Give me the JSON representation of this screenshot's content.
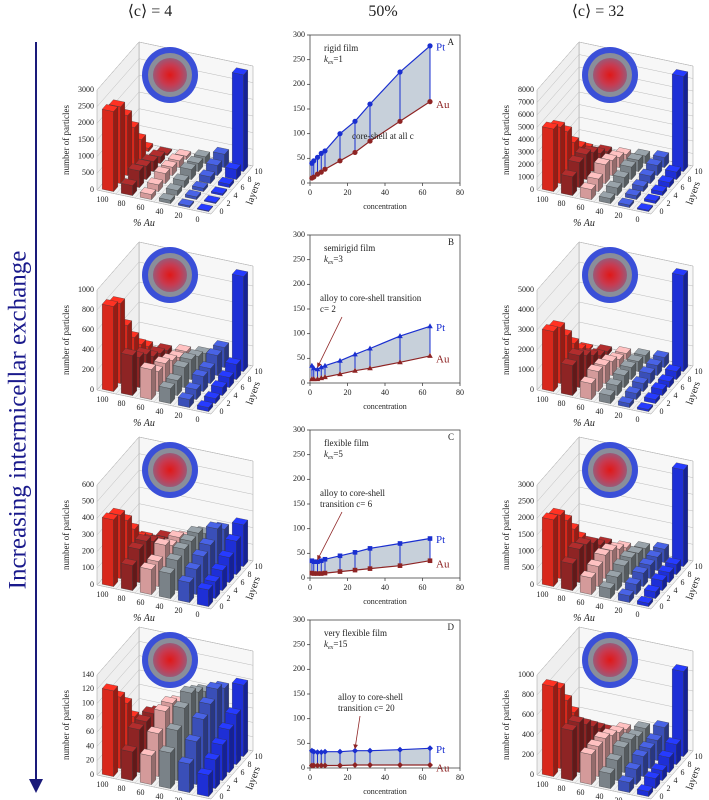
{
  "headers": [
    "⟨c⟩ = 4",
    "50%",
    "⟨c⟩ = 32"
  ],
  "side_label": "Increasing intermicellar exchange",
  "chart_data": [
    {
      "type": "bar3d",
      "ylabel": "number of particles",
      "xlabel": "% Au",
      "zlabel": "layers",
      "categories": [
        100,
        80,
        60,
        40,
        20,
        0
      ],
      "colors": [
        "#d8281c",
        "#8e2424",
        "#d49a9a",
        "#7a8288",
        "#3a4fb8",
        "#1e2fd6"
      ],
      "ylim": [
        0,
        3000
      ],
      "yticks": [
        0,
        500,
        1000,
        1500,
        2000,
        2500,
        3000
      ],
      "series": [
        {
          "name": "0",
          "values": [
            2400,
            300,
            150,
            100,
            50,
            20
          ]
        },
        {
          "name": "2",
          "values": [
            2300,
            500,
            200,
            150,
            80,
            30
          ]
        },
        {
          "name": "4",
          "values": [
            1800,
            400,
            300,
            200,
            100,
            50
          ]
        },
        {
          "name": "6",
          "values": [
            1200,
            300,
            250,
            300,
            200,
            100
          ]
        },
        {
          "name": "8",
          "values": [
            600,
            200,
            200,
            250,
            300,
            300
          ]
        },
        {
          "name": "10",
          "values": [
            100,
            50,
            100,
            200,
            400,
            2900
          ]
        }
      ]
    },
    {
      "type": "line",
      "panel": "A",
      "xlabel": "concentration",
      "notes": [
        "rigid film"
      ],
      "kex": [
        "k",
        "ex",
        "=1"
      ],
      "transition": [
        "core-shell at all c"
      ],
      "marker": "circle",
      "x": [
        1,
        2,
        4,
        6,
        8,
        16,
        24,
        32,
        48,
        64
      ],
      "xlim": [
        0,
        80
      ],
      "xticks": [
        0,
        20,
        40,
        60,
        80
      ],
      "ylim": [
        0,
        300
      ],
      "yticks": [
        0,
        50,
        100,
        150,
        200,
        250,
        300
      ],
      "series": [
        {
          "name": "Pt",
          "color": "#1a2fd0",
          "values": [
            40,
            45,
            52,
            60,
            65,
            100,
            125,
            160,
            225,
            278
          ]
        },
        {
          "name": "Au",
          "color": "#8e2424",
          "values": [
            10,
            12,
            18,
            22,
            28,
            45,
            62,
            85,
            125,
            165
          ]
        }
      ]
    },
    {
      "type": "bar3d",
      "ylabel": "number of particles",
      "xlabel": "% Au",
      "zlabel": "layers",
      "categories": [
        100,
        80,
        60,
        40,
        20,
        0
      ],
      "colors": [
        "#d8281c",
        "#8e2424",
        "#d49a9a",
        "#7a8288",
        "#3a4fb8",
        "#1e2fd6"
      ],
      "ylim": [
        0,
        8000
      ],
      "yticks": [
        0,
        1000,
        2000,
        3000,
        4000,
        5000,
        6000,
        7000,
        8000
      ],
      "series": [
        {
          "name": "0",
          "values": [
            5000,
            1500,
            800,
            400,
            200,
            100
          ]
        },
        {
          "name": "2",
          "values": [
            4500,
            2000,
            1000,
            600,
            300,
            200
          ]
        },
        {
          "name": "4",
          "values": [
            3500,
            2000,
            1500,
            800,
            400,
            300
          ]
        },
        {
          "name": "6",
          "values": [
            2000,
            1500,
            1200,
            1000,
            600,
            400
          ]
        },
        {
          "name": "8",
          "values": [
            1000,
            800,
            800,
            900,
            800,
            600
          ]
        },
        {
          "name": "10",
          "values": [
            200,
            300,
            400,
            600,
            800,
            7600
          ]
        }
      ]
    },
    {
      "type": "bar3d",
      "ylabel": "number of particles",
      "xlabel": "% Au",
      "zlabel": "layers",
      "categories": [
        100,
        80,
        60,
        40,
        20,
        0
      ],
      "colors": [
        "#d8281c",
        "#8e2424",
        "#d49a9a",
        "#7a8288",
        "#3a4fb8",
        "#1e2fd6"
      ],
      "ylim": [
        0,
        1000
      ],
      "yticks": [
        0,
        200,
        400,
        600,
        800,
        1000
      ],
      "series": [
        {
          "name": "0",
          "values": [
            850,
            400,
            300,
            150,
            80,
            40
          ]
        },
        {
          "name": "2",
          "values": [
            800,
            300,
            200,
            150,
            100,
            50
          ]
        },
        {
          "name": "4",
          "values": [
            500,
            250,
            200,
            200,
            150,
            80
          ]
        },
        {
          "name": "6",
          "values": [
            300,
            150,
            150,
            200,
            150,
            100
          ]
        },
        {
          "name": "8",
          "values": [
            150,
            100,
            100,
            150,
            200,
            150
          ]
        },
        {
          "name": "10",
          "values": [
            50,
            50,
            80,
            100,
            200,
            950
          ]
        }
      ]
    },
    {
      "type": "line",
      "panel": "B",
      "xlabel": "concentration",
      "notes": [
        "semirigid film"
      ],
      "kex": [
        "k",
        "ex",
        "=3"
      ],
      "transition": [
        "alloy to core-shell transition",
        "c= 2"
      ],
      "marker": "triangle",
      "x": [
        1,
        2,
        4,
        6,
        8,
        16,
        24,
        32,
        48,
        64
      ],
      "xlim": [
        0,
        80
      ],
      "xticks": [
        0,
        20,
        40,
        60,
        80
      ],
      "ylim": [
        0,
        300
      ],
      "yticks": [
        0,
        50,
        100,
        150,
        200,
        250,
        300
      ],
      "series": [
        {
          "name": "Pt",
          "color": "#1a2fd0",
          "values": [
            35,
            30,
            28,
            32,
            35,
            45,
            58,
            70,
            95,
            115
          ]
        },
        {
          "name": "Au",
          "color": "#8e2424",
          "values": [
            8,
            8,
            8,
            10,
            12,
            18,
            25,
            30,
            42,
            55
          ]
        }
      ]
    },
    {
      "type": "bar3d",
      "ylabel": "number of particles",
      "xlabel": "% Au",
      "zlabel": "layers",
      "categories": [
        100,
        80,
        60,
        40,
        20,
        0
      ],
      "colors": [
        "#d8281c",
        "#8e2424",
        "#d49a9a",
        "#7a8288",
        "#3a4fb8",
        "#1e2fd6"
      ],
      "ylim": [
        0,
        5000
      ],
      "yticks": [
        0,
        1000,
        2000,
        3000,
        4000,
        5000
      ],
      "series": [
        {
          "name": "0",
          "values": [
            3000,
            1500,
            800,
            400,
            200,
            100
          ]
        },
        {
          "name": "2",
          "values": [
            2800,
            1600,
            1000,
            500,
            300,
            200
          ]
        },
        {
          "name": "4",
          "values": [
            2000,
            1200,
            900,
            600,
            400,
            300
          ]
        },
        {
          "name": "6",
          "values": [
            1200,
            800,
            700,
            600,
            500,
            300
          ]
        },
        {
          "name": "8",
          "values": [
            500,
            400,
            400,
            500,
            500,
            400
          ]
        },
        {
          "name": "10",
          "values": [
            100,
            200,
            300,
            400,
            500,
            4800
          ]
        }
      ]
    },
    {
      "type": "bar3d",
      "ylabel": "number of particles",
      "xlabel": "% Au",
      "zlabel": "layers",
      "categories": [
        100,
        80,
        60,
        40,
        20,
        0
      ],
      "colors": [
        "#d8281c",
        "#8e2424",
        "#d49a9a",
        "#7a8288",
        "#3a4fb8",
        "#1e2fd6"
      ],
      "ylim": [
        0,
        600
      ],
      "yticks": [
        0,
        100,
        200,
        300,
        400,
        500,
        600
      ],
      "series": [
        {
          "name": "0",
          "values": [
            400,
            150,
            150,
            150,
            120,
            100
          ]
        },
        {
          "name": "2",
          "values": [
            380,
            200,
            150,
            180,
            150,
            100
          ]
        },
        {
          "name": "4",
          "values": [
            300,
            200,
            200,
            200,
            180,
            120
          ]
        },
        {
          "name": "6",
          "values": [
            200,
            150,
            150,
            200,
            200,
            150
          ]
        },
        {
          "name": "8",
          "values": [
            100,
            100,
            150,
            200,
            250,
            200
          ]
        },
        {
          "name": "10",
          "values": [
            50,
            80,
            100,
            150,
            200,
            250
          ]
        }
      ]
    },
    {
      "type": "line",
      "panel": "C",
      "xlabel": "concentration",
      "notes": [
        "flexible film"
      ],
      "kex": [
        "k",
        "ex",
        "=5"
      ],
      "transition": [
        "alloy to core-shell",
        "transition c= 6"
      ],
      "marker": "square",
      "x": [
        1,
        2,
        4,
        6,
        8,
        16,
        24,
        32,
        48,
        64
      ],
      "xlim": [
        0,
        80
      ],
      "xticks": [
        0,
        20,
        40,
        60,
        80
      ],
      "ylim": [
        0,
        300
      ],
      "yticks": [
        0,
        50,
        100,
        150,
        200,
        250,
        300
      ],
      "series": [
        {
          "name": "Pt",
          "color": "#1a2fd0",
          "values": [
            35,
            33,
            33,
            35,
            38,
            45,
            52,
            60,
            70,
            80
          ]
        },
        {
          "name": "Au",
          "color": "#8e2424",
          "values": [
            10,
            9,
            9,
            9,
            10,
            13,
            16,
            19,
            25,
            35
          ]
        }
      ]
    },
    {
      "type": "bar3d",
      "ylabel": "number of particles",
      "xlabel": "% Au",
      "zlabel": "layers",
      "categories": [
        100,
        80,
        60,
        40,
        20,
        0
      ],
      "colors": [
        "#d8281c",
        "#8e2424",
        "#d49a9a",
        "#7a8288",
        "#3a4fb8",
        "#1e2fd6"
      ],
      "ylim": [
        0,
        3000
      ],
      "yticks": [
        0,
        500,
        1000,
        1500,
        2000,
        2500,
        3000
      ],
      "series": [
        {
          "name": "0",
          "values": [
            2000,
            800,
            500,
            300,
            200,
            100
          ]
        },
        {
          "name": "2",
          "values": [
            1900,
            1000,
            600,
            400,
            300,
            200
          ]
        },
        {
          "name": "4",
          "values": [
            1500,
            900,
            700,
            500,
            400,
            300
          ]
        },
        {
          "name": "6",
          "values": [
            1000,
            700,
            600,
            500,
            400,
            300
          ]
        },
        {
          "name": "8",
          "values": [
            500,
            400,
            400,
            400,
            400,
            300
          ]
        },
        {
          "name": "10",
          "values": [
            100,
            200,
            200,
            300,
            400,
            2900
          ]
        }
      ]
    },
    {
      "type": "bar3d",
      "ylabel": "number of particles",
      "xlabel": "% Au",
      "zlabel": "layers",
      "categories": [
        100,
        80,
        60,
        40,
        20,
        0
      ],
      "colors": [
        "#d8281c",
        "#8e2424",
        "#d49a9a",
        "#7a8288",
        "#3a4fb8",
        "#1e2fd6"
      ],
      "ylim": [
        0,
        140
      ],
      "yticks": [
        0,
        20,
        40,
        60,
        80,
        100,
        120,
        140
      ],
      "series": [
        {
          "name": "0",
          "values": [
            120,
            40,
            40,
            50,
            40,
            30
          ]
        },
        {
          "name": "2",
          "values": [
            100,
            60,
            60,
            70,
            60,
            40
          ]
        },
        {
          "name": "4",
          "values": [
            80,
            60,
            80,
            90,
            80,
            50
          ]
        },
        {
          "name": "6",
          "values": [
            50,
            60,
            80,
            100,
            90,
            60
          ]
        },
        {
          "name": "8",
          "values": [
            30,
            50,
            70,
            90,
            100,
            70
          ]
        },
        {
          "name": "10",
          "values": [
            20,
            30,
            50,
            80,
            90,
            100
          ]
        }
      ]
    },
    {
      "type": "line",
      "panel": "D",
      "xlabel": "concentration",
      "notes": [
        "very flexible film"
      ],
      "kex": [
        "k",
        "ex",
        "=15"
      ],
      "transition": [
        "alloy to core-shell",
        "transition c= 20"
      ],
      "marker": "diamond",
      "x": [
        1,
        2,
        4,
        6,
        8,
        16,
        24,
        32,
        48,
        64
      ],
      "xlim": [
        0,
        80
      ],
      "xticks": [
        0,
        20,
        40,
        60,
        80
      ],
      "ylim": [
        0,
        300
      ],
      "yticks": [
        0,
        50,
        100,
        150,
        200,
        250,
        300
      ],
      "series": [
        {
          "name": "Pt",
          "color": "#1a2fd0",
          "values": [
            35,
            33,
            32,
            32,
            33,
            33,
            35,
            35,
            37,
            40
          ]
        },
        {
          "name": "Au",
          "color": "#8e2424",
          "values": [
            5,
            5,
            5,
            5,
            5,
            5,
            6,
            6,
            6,
            6
          ]
        }
      ]
    },
    {
      "type": "bar3d",
      "ylabel": "number of particles",
      "xlabel": "% Au",
      "zlabel": "layers",
      "categories": [
        100,
        80,
        60,
        40,
        20,
        0
      ],
      "colors": [
        "#d8281c",
        "#8e2424",
        "#d49a9a",
        "#7a8288",
        "#3a4fb8",
        "#1e2fd6"
      ],
      "ylim": [
        0,
        1000
      ],
      "yticks": [
        0,
        200,
        400,
        600,
        800,
        1000
      ],
      "series": [
        {
          "name": "0",
          "values": [
            900,
            500,
            300,
            150,
            100,
            50
          ]
        },
        {
          "name": "2",
          "values": [
            800,
            500,
            300,
            200,
            150,
            100
          ]
        },
        {
          "name": "4",
          "values": [
            600,
            400,
            300,
            250,
            200,
            100
          ]
        },
        {
          "name": "6",
          "values": [
            400,
            300,
            250,
            250,
            200,
            150
          ]
        },
        {
          "name": "8",
          "values": [
            200,
            200,
            200,
            200,
            200,
            200
          ]
        },
        {
          "name": "10",
          "values": [
            50,
            100,
            150,
            200,
            250,
            850
          ]
        }
      ]
    }
  ]
}
